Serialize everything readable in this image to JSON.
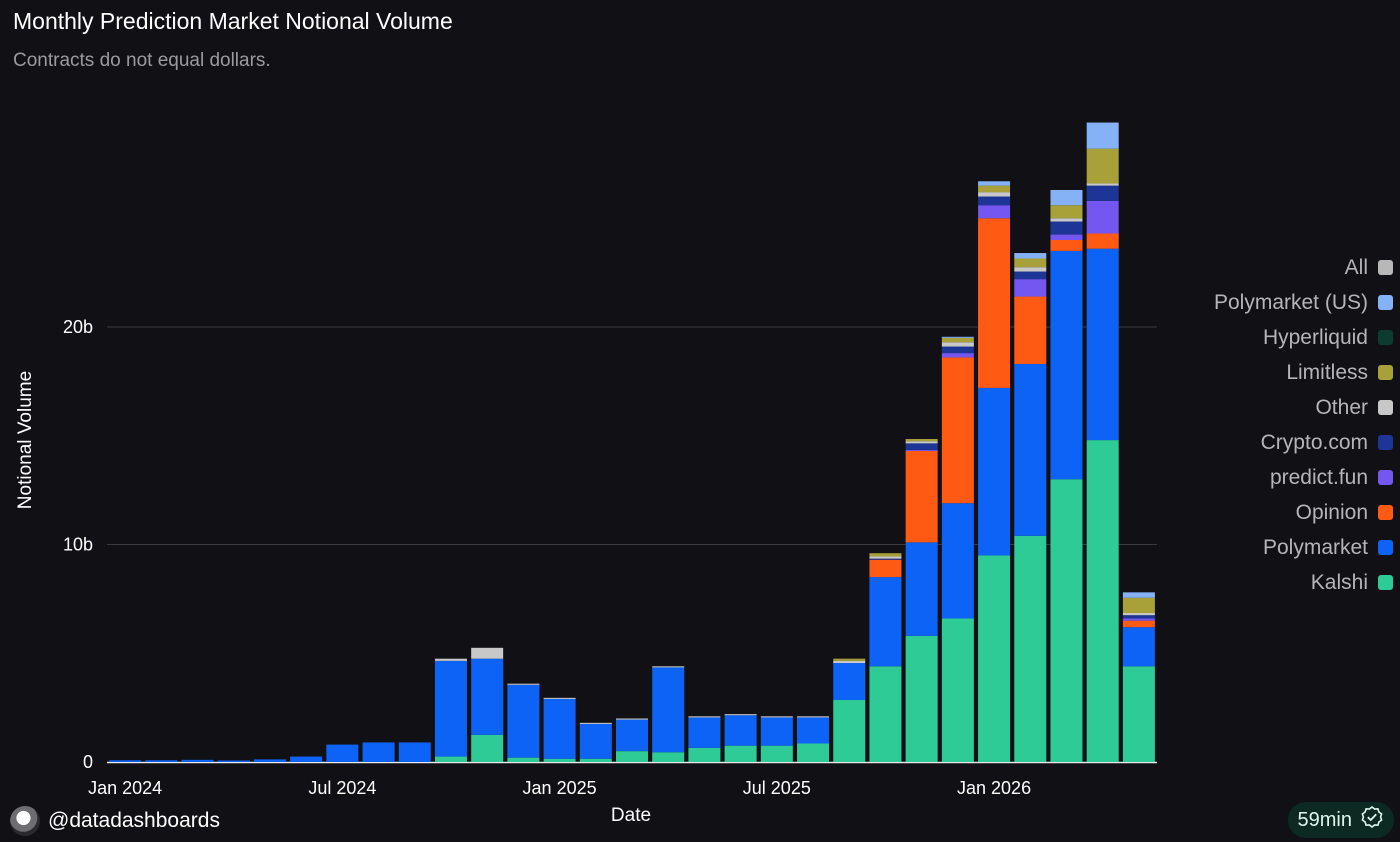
{
  "header": {
    "title": "Monthly Prediction Market Notional Volume",
    "subtitle": "Contracts do not equal dollars."
  },
  "footer": {
    "handle": "@datadashboards",
    "refresh_badge": "59min",
    "avatar_icon": "avatar-icon",
    "refresh_icon": "check-badge-icon"
  },
  "legend": [
    {
      "label": "All",
      "color": "#b8b8b8"
    },
    {
      "label": "Polymarket (US)",
      "color": "#85b2f7"
    },
    {
      "label": "Hyperliquid",
      "color": "#0d3b2f"
    },
    {
      "label": "Limitless",
      "color": "#a8a13a"
    },
    {
      "label": "Other",
      "color": "#c8c8c8"
    },
    {
      "label": "Crypto.com",
      "color": "#1d3596"
    },
    {
      "label": "predict.fun",
      "color": "#7456f0"
    },
    {
      "label": "Opinion",
      "color": "#ff5a14"
    },
    {
      "label": "Polymarket",
      "color": "#0e63f7"
    },
    {
      "label": "Kalshi",
      "color": "#2ecb96"
    }
  ],
  "chart_data": {
    "type": "bar",
    "stacked": true,
    "xlabel": "Date",
    "ylabel": "Notional Volume",
    "ylim": [
      0,
      30
    ],
    "y_unit": "billions",
    "y_ticks": [
      {
        "value": 0,
        "label": "0"
      },
      {
        "value": 10,
        "label": "10b"
      },
      {
        "value": 20,
        "label": "20b"
      }
    ],
    "x_ticks": [
      {
        "index": 0,
        "label": "Jan 2024"
      },
      {
        "index": 6,
        "label": "Jul 2024"
      },
      {
        "index": 12,
        "label": "Jan 2025"
      },
      {
        "index": 18,
        "label": "Jul 2025"
      },
      {
        "index": 24,
        "label": "Jan 2026"
      }
    ],
    "categories": [
      "2024-01",
      "2024-02",
      "2024-03",
      "2024-04",
      "2024-05",
      "2024-06",
      "2024-07",
      "2024-08",
      "2024-09",
      "2024-10",
      "2024-11",
      "2024-12",
      "2025-01",
      "2025-02",
      "2025-03",
      "2025-04",
      "2025-05",
      "2025-06",
      "2025-07",
      "2025-08",
      "2025-09",
      "2025-10",
      "2025-11",
      "2025-12",
      "2026-01",
      "2026-02",
      "2026-03",
      "2026-04",
      "2026-05"
    ],
    "series": [
      {
        "name": "Kalshi",
        "color": "#2ecb96",
        "values": [
          0,
          0,
          0,
          0,
          0,
          0,
          0,
          0,
          0,
          0.25,
          1.25,
          0.2,
          0.15,
          0.15,
          0.5,
          0.45,
          0.65,
          0.75,
          0.75,
          0.85,
          2.85,
          4.4,
          5.8,
          6.6,
          9.5,
          10.4,
          13.0,
          14.8,
          4.4
        ]
      },
      {
        "name": "Polymarket",
        "color": "#0e63f7",
        "values": [
          0.08,
          0.08,
          0.1,
          0.07,
          0.12,
          0.25,
          0.8,
          0.9,
          0.9,
          4.4,
          3.5,
          3.35,
          2.75,
          1.6,
          1.45,
          3.9,
          1.4,
          1.4,
          1.3,
          1.2,
          1.7,
          4.1,
          4.3,
          5.3,
          7.7,
          7.9,
          10.5,
          8.8,
          1.8
        ]
      },
      {
        "name": "Opinion",
        "color": "#ff5a14",
        "values": [
          0,
          0,
          0,
          0,
          0,
          0,
          0,
          0,
          0,
          0,
          0,
          0,
          0,
          0,
          0,
          0,
          0,
          0,
          0,
          0,
          0,
          0.8,
          4.2,
          6.7,
          7.8,
          3.1,
          0.5,
          0.7,
          0.3
        ]
      },
      {
        "name": "predict.fun",
        "color": "#7456f0",
        "values": [
          0,
          0,
          0,
          0,
          0,
          0,
          0,
          0,
          0,
          0,
          0,
          0,
          0,
          0,
          0,
          0,
          0,
          0,
          0,
          0,
          0,
          0,
          0.05,
          0.2,
          0.6,
          0.8,
          0.25,
          1.5,
          0.1
        ]
      },
      {
        "name": "Crypto.com",
        "color": "#1d3596",
        "values": [
          0,
          0,
          0,
          0,
          0,
          0,
          0,
          0,
          0,
          0,
          0,
          0,
          0,
          0,
          0,
          0,
          0,
          0,
          0,
          0,
          0,
          0.05,
          0.3,
          0.3,
          0.4,
          0.35,
          0.6,
          0.7,
          0.15
        ]
      },
      {
        "name": "Other",
        "color": "#c8c8c8",
        "values": [
          0,
          0,
          0,
          0,
          0,
          0,
          0,
          0,
          0,
          0.1,
          0.5,
          0.05,
          0.05,
          0.05,
          0.05,
          0.05,
          0.05,
          0.05,
          0.05,
          0.05,
          0.1,
          0.1,
          0.1,
          0.2,
          0.2,
          0.2,
          0.15,
          0.1,
          0.1
        ]
      },
      {
        "name": "Limitless",
        "color": "#a8a13a",
        "values": [
          0,
          0,
          0,
          0,
          0,
          0,
          0,
          0,
          0,
          0,
          0,
          0,
          0,
          0,
          0,
          0,
          0,
          0,
          0,
          0,
          0.1,
          0.15,
          0.1,
          0.2,
          0.3,
          0.4,
          0.6,
          1.6,
          0.7
        ]
      },
      {
        "name": "Hyperliquid",
        "color": "#0d3b2f",
        "values": [
          0,
          0,
          0,
          0,
          0,
          0,
          0,
          0,
          0,
          0,
          0,
          0,
          0,
          0,
          0,
          0,
          0,
          0,
          0,
          0,
          0,
          0,
          0,
          0,
          0,
          0,
          0,
          0,
          0
        ]
      },
      {
        "name": "Polymarket (US)",
        "color": "#85b2f7",
        "values": [
          0,
          0,
          0,
          0,
          0,
          0,
          0,
          0,
          0,
          0,
          0,
          0,
          0,
          0,
          0,
          0,
          0,
          0,
          0,
          0,
          0,
          0,
          0,
          0.05,
          0.2,
          0.25,
          0.7,
          1.2,
          0.25
        ]
      }
    ]
  }
}
